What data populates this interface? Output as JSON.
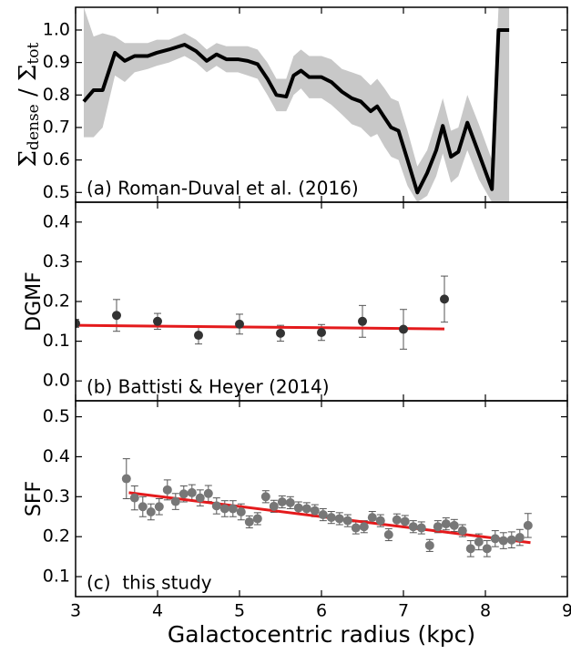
{
  "chart_data": [
    {
      "type": "line",
      "ylabel_parts": [
        "Σ",
        "dense",
        " / Σ",
        "tot"
      ],
      "annotation": "(a) Roman-Duval et al. (2016)",
      "xlim": [
        3,
        9
      ],
      "ylim": [
        0.47,
        1.07
      ],
      "yticks": [
        0.5,
        0.6,
        0.7,
        0.8,
        0.9,
        {
          "value": 1.0,
          "label": "1.0"
        }
      ],
      "color": "#000000",
      "band_color": "#c8c8c8",
      "x": [
        3.1,
        3.22,
        3.33,
        3.48,
        3.6,
        3.72,
        3.88,
        3.99,
        4.14,
        4.33,
        4.47,
        4.6,
        4.72,
        4.84,
        4.98,
        5.1,
        5.22,
        5.34,
        5.45,
        5.57,
        5.66,
        5.75,
        5.85,
        6.0,
        6.12,
        6.25,
        6.37,
        6.48,
        6.6,
        6.68,
        6.77,
        6.85,
        6.94,
        7.05,
        7.17,
        7.29,
        7.4,
        7.48,
        7.58,
        7.67,
        7.78,
        7.92,
        8.08,
        8.16,
        8.29
      ],
      "values": [
        0.78,
        0.815,
        0.815,
        0.93,
        0.905,
        0.92,
        0.92,
        0.93,
        0.94,
        0.955,
        0.935,
        0.905,
        0.925,
        0.91,
        0.91,
        0.905,
        0.895,
        0.85,
        0.8,
        0.795,
        0.86,
        0.875,
        0.855,
        0.855,
        0.84,
        0.81,
        0.79,
        0.78,
        0.75,
        0.765,
        0.73,
        0.7,
        0.69,
        0.6,
        0.5,
        0.56,
        0.63,
        0.705,
        0.61,
        0.625,
        0.715,
        0.62,
        0.51,
        1.0,
        1.0
      ],
      "band_lower": [
        0.67,
        0.67,
        0.7,
        0.86,
        0.84,
        0.87,
        0.88,
        0.89,
        0.9,
        0.92,
        0.9,
        0.87,
        0.89,
        0.87,
        0.87,
        0.86,
        0.85,
        0.8,
        0.75,
        0.75,
        0.8,
        0.82,
        0.79,
        0.79,
        0.77,
        0.74,
        0.71,
        0.7,
        0.67,
        0.68,
        0.64,
        0.61,
        0.6,
        0.52,
        0.47,
        0.49,
        0.55,
        0.62,
        0.53,
        0.55,
        0.63,
        0.54,
        0.47,
        0.47,
        0.47
      ],
      "band_upper": [
        1.07,
        0.98,
        0.99,
        0.98,
        0.96,
        0.96,
        0.96,
        0.97,
        0.97,
        0.99,
        0.97,
        0.94,
        0.96,
        0.95,
        0.95,
        0.95,
        0.94,
        0.9,
        0.85,
        0.85,
        0.92,
        0.94,
        0.92,
        0.92,
        0.91,
        0.88,
        0.87,
        0.86,
        0.83,
        0.85,
        0.82,
        0.79,
        0.78,
        0.69,
        0.58,
        0.63,
        0.72,
        0.79,
        0.69,
        0.7,
        0.8,
        0.71,
        0.6,
        1.07,
        1.07
      ]
    },
    {
      "type": "scatter",
      "ylabel": "DGMF",
      "annotation": "(b) Battisti & Heyer (2014)",
      "xlim": [
        3,
        9
      ],
      "ylim": [
        -0.05,
        0.45
      ],
      "yticks": [
        {
          "value": 0,
          "label": "0.0"
        },
        0.1,
        0.2,
        0.3,
        0.4
      ],
      "color": "#333333",
      "x": [
        3.0,
        3.5,
        4.0,
        4.5,
        5.0,
        5.5,
        6.0,
        6.5,
        7.0,
        7.5
      ],
      "values": [
        0.145,
        0.165,
        0.15,
        0.115,
        0.143,
        0.12,
        0.122,
        0.15,
        0.13,
        0.206
      ],
      "errors": [
        0.01,
        0.04,
        0.02,
        0.022,
        0.025,
        0.02,
        0.02,
        0.04,
        0.05,
        0.058
      ],
      "fit": {
        "color": "#e41a1c",
        "x": [
          3.0,
          7.5
        ],
        "values": [
          0.14,
          0.131
        ]
      }
    },
    {
      "type": "scatter",
      "ylabel": "SFF",
      "annotation": "(c)  this study",
      "xlabel": "Galactocentric radius (kpc)",
      "xlim": [
        3,
        9
      ],
      "xticks": [
        3,
        4,
        5,
        6,
        7,
        8,
        9
      ],
      "ylim": [
        0.05,
        0.54
      ],
      "yticks": [
        0.1,
        0.2,
        0.3,
        0.4,
        0.5
      ],
      "color": "#777777",
      "x": [
        3.62,
        3.72,
        3.82,
        3.92,
        4.02,
        4.12,
        4.22,
        4.32,
        4.42,
        4.52,
        4.62,
        4.72,
        4.82,
        4.92,
        5.02,
        5.12,
        5.22,
        5.32,
        5.42,
        5.52,
        5.62,
        5.72,
        5.82,
        5.92,
        6.02,
        6.12,
        6.22,
        6.32,
        6.42,
        6.52,
        6.62,
        6.72,
        6.82,
        6.92,
        7.02,
        7.12,
        7.22,
        7.32,
        7.42,
        7.52,
        7.62,
        7.72,
        7.82,
        7.92,
        8.02,
        8.12,
        8.22,
        8.32,
        8.42,
        8.52
      ],
      "values": [
        0.345,
        0.297,
        0.275,
        0.262,
        0.275,
        0.317,
        0.288,
        0.307,
        0.31,
        0.297,
        0.308,
        0.277,
        0.27,
        0.27,
        0.262,
        0.237,
        0.245,
        0.3,
        0.276,
        0.287,
        0.285,
        0.272,
        0.27,
        0.265,
        0.255,
        0.248,
        0.245,
        0.24,
        0.222,
        0.225,
        0.248,
        0.24,
        0.205,
        0.242,
        0.238,
        0.225,
        0.222,
        0.178,
        0.225,
        0.232,
        0.228,
        0.215,
        0.17,
        0.187,
        0.17,
        0.195,
        0.19,
        0.192,
        0.198,
        0.228
      ],
      "errors": [
        0.05,
        0.03,
        0.025,
        0.02,
        0.02,
        0.025,
        0.02,
        0.02,
        0.02,
        0.02,
        0.02,
        0.02,
        0.02,
        0.02,
        0.02,
        0.015,
        0.015,
        0.015,
        0.015,
        0.015,
        0.015,
        0.015,
        0.015,
        0.015,
        0.015,
        0.015,
        0.015,
        0.015,
        0.015,
        0.015,
        0.015,
        0.015,
        0.015,
        0.015,
        0.015,
        0.015,
        0.015,
        0.015,
        0.015,
        0.015,
        0.015,
        0.015,
        0.02,
        0.02,
        0.02,
        0.02,
        0.02,
        0.02,
        0.02,
        0.03
      ],
      "fit": {
        "color": "#e41a1c",
        "x": [
          3.65,
          8.55
        ],
        "values": [
          0.31,
          0.185
        ]
      }
    }
  ]
}
